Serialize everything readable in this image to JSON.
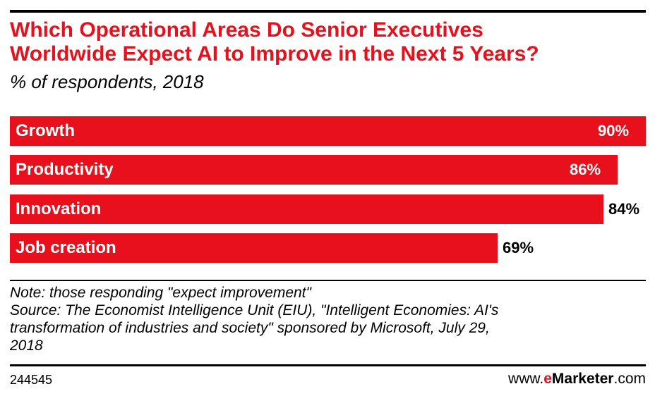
{
  "chart_data": {
    "type": "bar",
    "orientation": "horizontal",
    "title_line1": "Which Operational Areas Do Senior Executives",
    "title_line2": "Worldwide Expect AI to Improve in the Next 5 Years?",
    "subtitle": "% of respondents, 2018",
    "categories": [
      "Growth",
      "Productivity",
      "Innovation",
      "Job creation"
    ],
    "values": [
      90,
      86,
      84,
      69
    ],
    "value_labels": [
      "90%",
      "86%",
      "84%",
      "69%"
    ],
    "unit": "%",
    "xlim": [
      0,
      90
    ],
    "bar_color": "#e8101c",
    "grid": false,
    "legend": "none"
  },
  "footer": {
    "note": "Note: those responding \"expect improvement\"",
    "source_line1": "Source: The Economist Intelligence Unit (EIU), \"Intelligent Economies: AI's",
    "source_line2": "transformation of industries and society\" sponsored by Microsoft, July 29,",
    "source_line3": "2018",
    "chart_id": "244545",
    "brand_prefix": "www.",
    "brand_accent": "e",
    "brand_name": "Marketer",
    "brand_suffix": ".com"
  },
  "colors": {
    "accent": "#e8101c",
    "text": "#000000",
    "background": "#ffffff"
  }
}
